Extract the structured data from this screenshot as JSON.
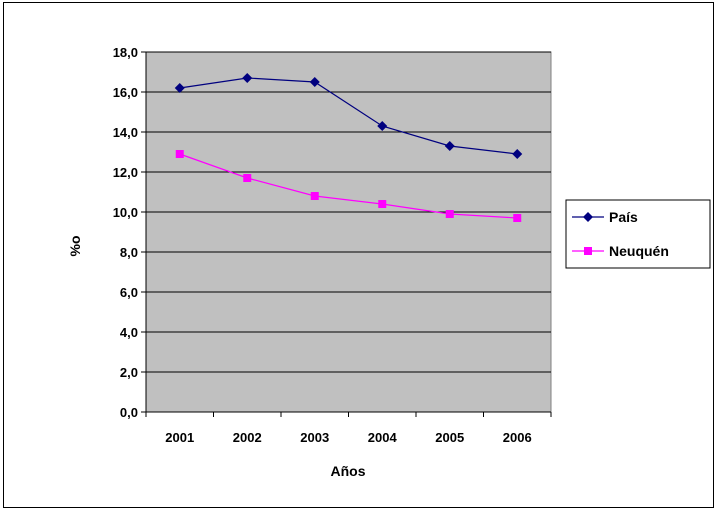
{
  "chart_data": {
    "type": "line",
    "categories": [
      "2001",
      "2002",
      "2003",
      "2004",
      "2005",
      "2006"
    ],
    "series": [
      {
        "name": "País",
        "values": [
          16.2,
          16.7,
          16.5,
          14.3,
          13.3,
          12.9
        ],
        "color": "#00007F",
        "marker": "diamond"
      },
      {
        "name": "Neuquén",
        "values": [
          12.9,
          11.7,
          10.8,
          10.4,
          9.9,
          9.7
        ],
        "color": "#FF00FF",
        "marker": "square"
      }
    ],
    "xlabel": "Años",
    "ylabel": "%o",
    "ylim": [
      0,
      18
    ],
    "ytick_step": 2,
    "ytick_labels": [
      "0,0",
      "2,0",
      "4,0",
      "6,0",
      "8,0",
      "10,0",
      "12,0",
      "14,0",
      "16,0",
      "18,0"
    ],
    "grid": true,
    "plot_background": "#C0C0C0",
    "legend_position": "right"
  }
}
